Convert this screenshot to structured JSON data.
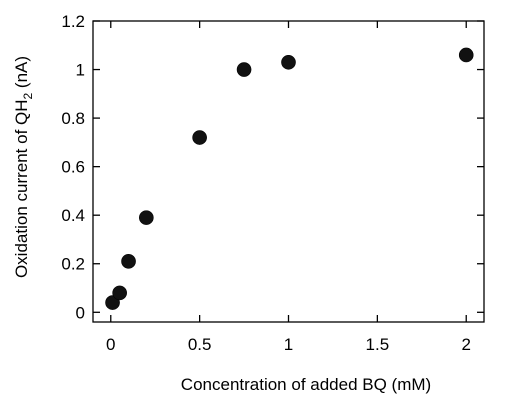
{
  "chart_data": {
    "type": "scatter",
    "title": "",
    "xlabel": "Concentration of added BQ (mM)",
    "ylabel": {
      "main": "Oxidation current of QH",
      "subscript": "2",
      "unit": " (nA)"
    },
    "xlim": [
      -0.1,
      2.1
    ],
    "ylim": [
      -0.04,
      1.2
    ],
    "x_ticks": [
      0,
      0.5,
      1,
      1.5,
      2
    ],
    "x_tick_labels": [
      "0",
      "0.5",
      "1",
      "1.5",
      "2"
    ],
    "y_ticks": [
      0,
      0.2,
      0.4,
      0.6,
      0.8,
      1,
      1.2
    ],
    "y_tick_labels": [
      "0",
      "0.2",
      "0.4",
      "0.6",
      "0.8",
      "1",
      "1.2"
    ],
    "grid": false,
    "legend": false,
    "marker_color": "#111111",
    "points": [
      {
        "x": 0.01,
        "y": 0.04
      },
      {
        "x": 0.05,
        "y": 0.08
      },
      {
        "x": 0.1,
        "y": 0.21
      },
      {
        "x": 0.2,
        "y": 0.39
      },
      {
        "x": 0.5,
        "y": 0.72
      },
      {
        "x": 0.75,
        "y": 1.0
      },
      {
        "x": 1.0,
        "y": 1.03
      },
      {
        "x": 2.0,
        "y": 1.06
      }
    ]
  }
}
